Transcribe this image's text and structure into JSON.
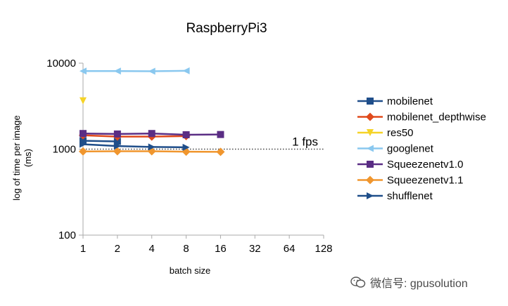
{
  "chart_data": {
    "type": "line",
    "title": "RaspberryPi3",
    "xlabel": "batch size",
    "ylabel_lines": [
      "log of time per image",
      "(ms)"
    ],
    "x_ticks": [
      1,
      2,
      4,
      8,
      16,
      32,
      64,
      128
    ],
    "x_scale": "log2",
    "y_scale": "log10",
    "y_ticks": [
      100,
      1000,
      10000
    ],
    "ylim": [
      100,
      10000
    ],
    "xlim": [
      1,
      128
    ],
    "grid": false,
    "legend_position": "right",
    "annotations": [
      {
        "text": "1 fps",
        "y": 1000,
        "style": "dotted-line"
      }
    ],
    "series": [
      {
        "name": "mobilenet",
        "color": "#1f4e8a",
        "marker": "square",
        "x": [
          1,
          2
        ],
        "y": [
          1250,
          1230
        ]
      },
      {
        "name": "mobilenet_depthwise",
        "color": "#e04a1c",
        "marker": "diamond",
        "x": [
          1,
          2,
          4,
          8
        ],
        "y": [
          1450,
          1400,
          1400,
          1420
        ]
      },
      {
        "name": "res50",
        "color": "#f5d327",
        "marker": "triangle-down",
        "x": [
          1
        ],
        "y": [
          3650
        ]
      },
      {
        "name": "googlenet",
        "color": "#8ac8ef",
        "marker": "triangle-left",
        "x": [
          1,
          2,
          4,
          8
        ],
        "y": [
          8100,
          8100,
          8050,
          8150
        ]
      },
      {
        "name": "Squeezenetv1.0",
        "color": "#5a2d84",
        "marker": "square",
        "x": [
          1,
          2,
          4,
          8,
          16
        ],
        "y": [
          1520,
          1500,
          1520,
          1470,
          1480
        ]
      },
      {
        "name": "Squeezenetv1.1",
        "color": "#f0962e",
        "marker": "diamond",
        "x": [
          1,
          2,
          4,
          8,
          16
        ],
        "y": [
          940,
          945,
          945,
          935,
          930
        ]
      },
      {
        "name": "shufflenet",
        "color": "#1f4e8a",
        "marker": "triangle-right",
        "x": [
          1,
          2,
          4,
          8
        ],
        "y": [
          1140,
          1085,
          1060,
          1050
        ]
      }
    ]
  },
  "watermark": {
    "icon": "wechat-icon",
    "text": "微信号: gpusolution"
  }
}
